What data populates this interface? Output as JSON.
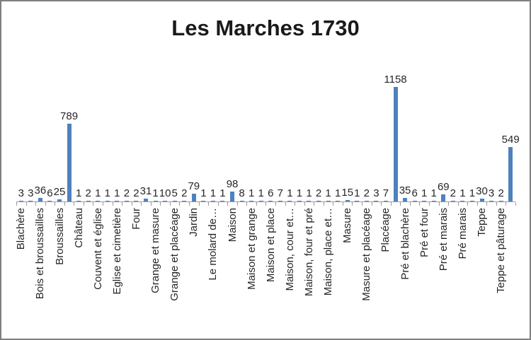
{
  "chart_data": {
    "type": "bar",
    "title": "Les Marches 1730",
    "series_count": 1,
    "categories_total": 52,
    "label_interval": 2,
    "values": [
      3,
      3,
      36,
      6,
      25,
      789,
      1,
      2,
      1,
      1,
      1,
      2,
      2,
      31,
      1,
      10,
      5,
      2,
      79,
      1,
      1,
      1,
      98,
      8,
      1,
      1,
      6,
      7,
      1,
      1,
      1,
      2,
      1,
      1,
      15,
      1,
      2,
      3,
      7,
      1158,
      35,
      6,
      1,
      1,
      69,
      2,
      1,
      1,
      30,
      3,
      2,
      549
    ],
    "category_labels_shown": [
      "Blachère",
      "Bois et broussailles",
      "Broussailles",
      "Château",
      "Couvent et église",
      "Eglise et cimetière",
      "Four",
      "Grange et masure",
      "Grange et placéage",
      "Jardin",
      "Le molard de…",
      "Maison",
      "Maison et grange",
      "Maison et place",
      "Maison, cour et…",
      "Maison, four et pré",
      "Maison, place et…",
      "Masure",
      "Masure et placéage",
      "Placéage",
      "Pré et blachère",
      "Pré et four",
      "Pré et marais",
      "Pré marais",
      "Teppe",
      "Teppe et pâturage"
    ],
    "labeled_value_pairs_note": "labels apply to categories 1,3,5,...51 of 52; even categories are unlabeled",
    "data_labels_visible": true,
    "y_axis_visible": false,
    "gridlines": false,
    "legend_position": "none",
    "ylim": [
      0,
      1250
    ]
  },
  "styles": {
    "bar_color": "#4f81bd",
    "axis_color": "#9c9c9c",
    "text_color": "#262626",
    "title_color": "#1a1a1a",
    "frame_border_color": "#7f7f7f",
    "background": "#ffffff"
  }
}
